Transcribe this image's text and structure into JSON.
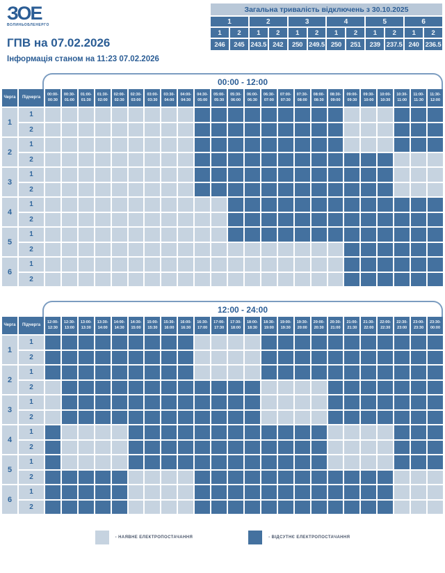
{
  "logo": {
    "text": "ЗОЕ",
    "subtext": "ВОЛИНЬОБЛЕНЕРГО"
  },
  "header": {
    "title": "ГПВ на 07.02.2026",
    "subtitle": "Інформація станом на 11:23 07.02.2026"
  },
  "summary_table": {
    "title": "Загальна тривалість відключень з 30.10.2025",
    "queue_labels": [
      "1",
      "2",
      "3",
      "4",
      "5",
      "6"
    ],
    "sub_labels": [
      "1",
      "2",
      "1",
      "2",
      "1",
      "2",
      "1",
      "2",
      "1",
      "2",
      "1",
      "2"
    ],
    "values": [
      "246",
      "245",
      "243.5",
      "242",
      "250",
      "249.5",
      "250",
      "251",
      "239",
      "237.5",
      "240",
      "236.5"
    ]
  },
  "schedule_ui": {
    "queue_header": "Черга",
    "sub_header": "Підчерга"
  },
  "legend": {
    "available": "- НАЯВНЕ ЕЛЕКТРОПОСТАЧАННЯ",
    "absent": "- ВІДСУТНЄ ЕЛЕКТРОПОСТАЧАННЯ"
  },
  "colors": {
    "outage": "#44719f",
    "available": "#c6d3e0",
    "accent": "#2b5d95",
    "summary_title_bg": "#b9c8d8"
  },
  "chart_data": {
    "type": "heatmap",
    "encoding": {
      "0": "наявне електропостачання (світла клітинка)",
      "1": "відсутнє електропостачання (темна клітинка)"
    },
    "summary": {
      "title": "Загальна тривалість відключень з 30.10.2025",
      "columns": [
        "1.1",
        "1.2",
        "2.1",
        "2.2",
        "3.1",
        "3.2",
        "4.1",
        "4.2",
        "5.1",
        "5.2",
        "6.1",
        "6.2"
      ],
      "hours": [
        246,
        245,
        243.5,
        242,
        250,
        249.5,
        250,
        251,
        239,
        237.5,
        240,
        236.5
      ]
    },
    "tables": [
      {
        "title": "00:00 - 12:00",
        "time_slots": [
          "00:00-00:30",
          "00:30-01:00",
          "01:00-01:30",
          "01:30-02:00",
          "02:00-02:30",
          "02:30-03:00",
          "03:00-03:30",
          "03:30-04:00",
          "04:00-04:30",
          "04:30-05:00",
          "05:00-05:30",
          "05:30-06:00",
          "06:00-06:30",
          "06:30-07:00",
          "07:00-07:30",
          "07:30-08:00",
          "08:00-08:30",
          "08:30-09:00",
          "09:00-09:30",
          "09:30-10:00",
          "10:00-10:30",
          "10:30-11:00",
          "11:00-11:30",
          "11:30-12:00"
        ],
        "rows": [
          {
            "queue": "1",
            "sub": "1",
            "cells": [
              0,
              0,
              0,
              0,
              0,
              0,
              0,
              0,
              0,
              1,
              1,
              1,
              1,
              1,
              1,
              1,
              1,
              1,
              0,
              0,
              0,
              1,
              1,
              1
            ]
          },
          {
            "queue": "1",
            "sub": "2",
            "cells": [
              0,
              0,
              0,
              0,
              0,
              0,
              0,
              0,
              0,
              1,
              1,
              1,
              1,
              1,
              1,
              1,
              1,
              1,
              0,
              0,
              0,
              1,
              1,
              1
            ]
          },
          {
            "queue": "2",
            "sub": "1",
            "cells": [
              0,
              0,
              0,
              0,
              0,
              0,
              0,
              0,
              0,
              1,
              1,
              1,
              1,
              1,
              1,
              1,
              1,
              1,
              0,
              0,
              0,
              1,
              1,
              1
            ]
          },
          {
            "queue": "2",
            "sub": "2",
            "cells": [
              0,
              0,
              0,
              0,
              0,
              0,
              0,
              0,
              0,
              1,
              1,
              1,
              1,
              1,
              1,
              1,
              1,
              1,
              1,
              1,
              1,
              0,
              0,
              0
            ]
          },
          {
            "queue": "3",
            "sub": "1",
            "cells": [
              0,
              0,
              0,
              0,
              0,
              0,
              0,
              0,
              0,
              1,
              1,
              1,
              1,
              1,
              1,
              1,
              1,
              1,
              1,
              1,
              1,
              0,
              0,
              0
            ]
          },
          {
            "queue": "3",
            "sub": "2",
            "cells": [
              0,
              0,
              0,
              0,
              0,
              0,
              0,
              0,
              0,
              1,
              1,
              1,
              1,
              1,
              1,
              1,
              1,
              1,
              1,
              1,
              1,
              0,
              0,
              0
            ]
          },
          {
            "queue": "4",
            "sub": "1",
            "cells": [
              0,
              0,
              0,
              0,
              0,
              0,
              0,
              0,
              0,
              0,
              0,
              1,
              1,
              1,
              1,
              1,
              1,
              1,
              1,
              1,
              1,
              1,
              1,
              1
            ]
          },
          {
            "queue": "4",
            "sub": "2",
            "cells": [
              0,
              0,
              0,
              0,
              0,
              0,
              0,
              0,
              0,
              0,
              0,
              1,
              1,
              1,
              1,
              1,
              1,
              1,
              1,
              1,
              1,
              1,
              1,
              1
            ]
          },
          {
            "queue": "5",
            "sub": "1",
            "cells": [
              0,
              0,
              0,
              0,
              0,
              0,
              0,
              0,
              0,
              0,
              0,
              1,
              1,
              1,
              1,
              1,
              1,
              1,
              1,
              1,
              1,
              1,
              1,
              1
            ]
          },
          {
            "queue": "5",
            "sub": "2",
            "cells": [
              0,
              0,
              0,
              0,
              0,
              0,
              0,
              0,
              0,
              0,
              0,
              0,
              0,
              0,
              0,
              0,
              0,
              0,
              1,
              1,
              1,
              1,
              1,
              1
            ]
          },
          {
            "queue": "6",
            "sub": "1",
            "cells": [
              0,
              0,
              0,
              0,
              0,
              0,
              0,
              0,
              0,
              0,
              0,
              0,
              0,
              0,
              0,
              0,
              0,
              0,
              1,
              1,
              1,
              1,
              1,
              1
            ]
          },
          {
            "queue": "6",
            "sub": "2",
            "cells": [
              0,
              0,
              0,
              0,
              0,
              0,
              0,
              0,
              0,
              0,
              0,
              0,
              0,
              0,
              0,
              0,
              0,
              0,
              1,
              1,
              1,
              1,
              1,
              1
            ]
          }
        ]
      },
      {
        "title": "12:00 - 24:00",
        "time_slots": [
          "12:00-12:30",
          "12:30-13:00",
          "13:00-13:30",
          "13:30-14:00",
          "14:00-14:30",
          "14:30-15:00",
          "15:00-15:30",
          "15:30-16:00",
          "16:00-16:30",
          "16:30-17:00",
          "17:00-17:30",
          "17:30-18:00",
          "18:00-18:30",
          "18:30-19:00",
          "19:00-19:30",
          "19:30-20:00",
          "20:00-20:30",
          "20:30-21:00",
          "21:00-21:30",
          "21:30-22:00",
          "22:00-22:30",
          "22:30-23:00",
          "23:00-23:30",
          "23:30-00:00"
        ],
        "rows": [
          {
            "queue": "1",
            "sub": "1",
            "cells": [
              1,
              1,
              1,
              1,
              1,
              1,
              1,
              1,
              1,
              0,
              0,
              0,
              0,
              1,
              1,
              1,
              1,
              1,
              1,
              1,
              1,
              1,
              1,
              1
            ]
          },
          {
            "queue": "1",
            "sub": "2",
            "cells": [
              1,
              1,
              1,
              1,
              1,
              1,
              1,
              1,
              1,
              0,
              0,
              0,
              0,
              1,
              1,
              1,
              1,
              1,
              1,
              1,
              1,
              1,
              1,
              1
            ]
          },
          {
            "queue": "2",
            "sub": "1",
            "cells": [
              1,
              1,
              1,
              1,
              1,
              1,
              1,
              1,
              1,
              0,
              0,
              0,
              0,
              1,
              1,
              1,
              1,
              1,
              1,
              1,
              1,
              1,
              1,
              1
            ]
          },
          {
            "queue": "2",
            "sub": "2",
            "cells": [
              0,
              1,
              1,
              1,
              1,
              1,
              1,
              1,
              1,
              1,
              1,
              1,
              1,
              0,
              0,
              0,
              0,
              1,
              1,
              1,
              1,
              1,
              1,
              1
            ]
          },
          {
            "queue": "3",
            "sub": "1",
            "cells": [
              0,
              1,
              1,
              1,
              1,
              1,
              1,
              1,
              1,
              1,
              1,
              1,
              1,
              0,
              0,
              0,
              0,
              1,
              1,
              1,
              1,
              1,
              1,
              1
            ]
          },
          {
            "queue": "3",
            "sub": "2",
            "cells": [
              0,
              1,
              1,
              1,
              1,
              1,
              1,
              1,
              1,
              1,
              1,
              1,
              1,
              0,
              0,
              0,
              0,
              1,
              1,
              1,
              1,
              1,
              1,
              1
            ]
          },
          {
            "queue": "4",
            "sub": "1",
            "cells": [
              1,
              0,
              0,
              0,
              0,
              1,
              1,
              1,
              1,
              1,
              1,
              1,
              1,
              1,
              1,
              1,
              1,
              0,
              0,
              0,
              0,
              1,
              1,
              1
            ]
          },
          {
            "queue": "4",
            "sub": "2",
            "cells": [
              1,
              0,
              0,
              0,
              0,
              1,
              1,
              1,
              1,
              1,
              1,
              1,
              1,
              1,
              1,
              1,
              1,
              0,
              0,
              0,
              0,
              1,
              1,
              1
            ]
          },
          {
            "queue": "5",
            "sub": "1",
            "cells": [
              1,
              0,
              0,
              0,
              0,
              1,
              1,
              1,
              1,
              1,
              1,
              1,
              1,
              1,
              1,
              1,
              1,
              0,
              0,
              0,
              0,
              1,
              1,
              1
            ]
          },
          {
            "queue": "5",
            "sub": "2",
            "cells": [
              1,
              1,
              1,
              1,
              1,
              0,
              0,
              0,
              0,
              1,
              1,
              1,
              1,
              1,
              1,
              1,
              1,
              1,
              1,
              1,
              1,
              0,
              0,
              0
            ]
          },
          {
            "queue": "6",
            "sub": "1",
            "cells": [
              1,
              1,
              1,
              1,
              1,
              0,
              0,
              0,
              0,
              1,
              1,
              1,
              1,
              1,
              1,
              1,
              1,
              1,
              1,
              1,
              1,
              0,
              0,
              0
            ]
          },
          {
            "queue": "6",
            "sub": "2",
            "cells": [
              1,
              1,
              1,
              1,
              1,
              0,
              0,
              0,
              0,
              1,
              1,
              1,
              1,
              1,
              1,
              1,
              1,
              1,
              1,
              1,
              1,
              0,
              0,
              0
            ]
          }
        ]
      }
    ]
  }
}
